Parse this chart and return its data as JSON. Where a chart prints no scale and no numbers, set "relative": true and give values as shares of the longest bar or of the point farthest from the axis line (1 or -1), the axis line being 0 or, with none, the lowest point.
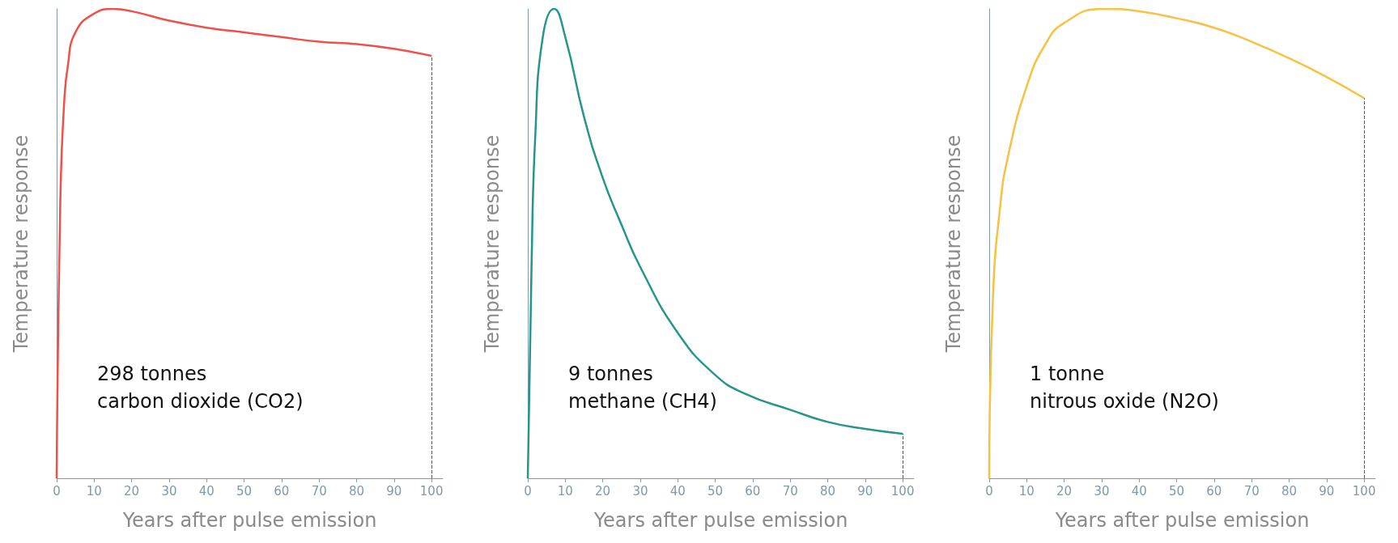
{
  "chart_data": [
    {
      "type": "line",
      "relative": true,
      "xlabel": "Years after pulse emission",
      "ylabel": "Temperature response",
      "annotations": [
        "298 tonnes",
        "carbon dioxide (CO2)"
      ],
      "xlim": [
        0,
        103
      ],
      "xticks": [
        0,
        10,
        20,
        30,
        40,
        50,
        60,
        70,
        80,
        90,
        100
      ],
      "grid": false,
      "marker": "none",
      "line_style": "solid",
      "ref_lines": [
        {
          "axis": "x",
          "value": 100,
          "color": "#555555",
          "line_style": "dashed"
        }
      ],
      "series": [
        {
          "color": "#f0504a",
          "x": [
            0,
            1,
            2,
            3,
            5,
            10,
            15,
            20,
            30,
            40,
            50,
            60,
            70,
            80,
            90,
            100
          ],
          "values": [
            0,
            0.6,
            0.8,
            0.88,
            0.95,
            0.99,
            1,
            0.995,
            0.975,
            0.96,
            0.95,
            0.94,
            0.93,
            0.925,
            0.915,
            0.9
          ]
        }
      ]
    },
    {
      "type": "line",
      "relative": true,
      "xlabel": "Years after pulse emission",
      "ylabel": "Temperature response",
      "annotations": [
        "9 tonnes",
        "methane (CH4)"
      ],
      "xlim": [
        0,
        103
      ],
      "xticks": [
        0,
        10,
        20,
        30,
        40,
        50,
        60,
        70,
        80,
        90,
        100
      ],
      "grid": false,
      "marker": "none",
      "line_style": "solid",
      "ref_lines": [
        {
          "axis": "x",
          "value": 100,
          "color": "#555555",
          "line_style": "dashed"
        }
      ],
      "series": [
        {
          "color": "#26968a",
          "x": [
            0,
            1,
            2,
            4,
            7,
            10,
            15,
            20,
            25,
            30,
            40,
            50,
            58,
            70,
            80,
            90,
            100
          ],
          "values": [
            0,
            0.45,
            0.73,
            0.94,
            1,
            0.94,
            0.77,
            0.64,
            0.54,
            0.45,
            0.31,
            0.22,
            0.18,
            0.146,
            0.12,
            0.105,
            0.095
          ]
        }
      ]
    },
    {
      "type": "line",
      "relative": true,
      "xlabel": "Years after pulse emission",
      "ylabel": "Temperature response",
      "annotations": [
        "1 tonne",
        "nitrous oxide (N2O)"
      ],
      "xlim": [
        0,
        103
      ],
      "xticks": [
        0,
        10,
        20,
        30,
        40,
        50,
        60,
        70,
        80,
        90,
        100
      ],
      "grid": false,
      "marker": "none",
      "line_style": "solid",
      "ref_lines": [
        {
          "axis": "x",
          "value": 100,
          "color": "#555555",
          "line_style": "dashed"
        }
      ],
      "series": [
        {
          "color": "#f5c242",
          "x": [
            0,
            1,
            3,
            5,
            10,
            15,
            20,
            30,
            40,
            50,
            60,
            70,
            80,
            90,
            100
          ],
          "values": [
            0,
            0.385,
            0.585,
            0.685,
            0.835,
            0.925,
            0.97,
            1,
            0.995,
            0.98,
            0.96,
            0.93,
            0.895,
            0.855,
            0.81
          ]
        }
      ]
    }
  ]
}
